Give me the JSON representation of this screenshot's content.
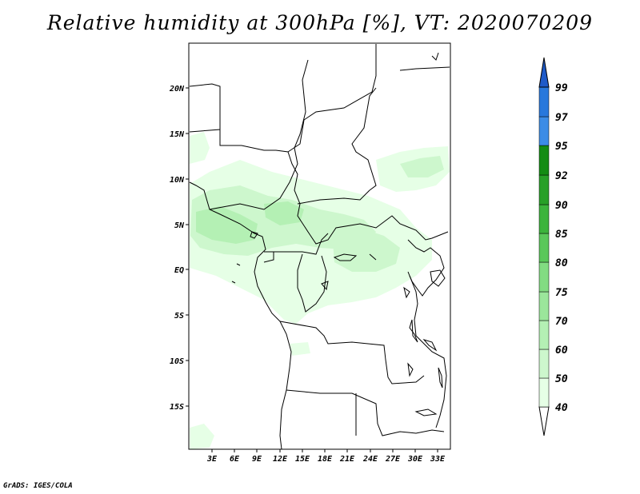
{
  "title": "Relative humidity at 300hPa [%], VT: 2020070209",
  "footer": "GrADS: IGES/COLA",
  "map": {
    "lon_labels": [
      "3E",
      "6E",
      "9E",
      "12E",
      "15E",
      "18E",
      "21E",
      "24E",
      "27E",
      "30E",
      "33E"
    ],
    "lat_labels": [
      "20N",
      "15N",
      "10N",
      "5N",
      "EQ",
      "5S",
      "10S",
      "15S"
    ]
  },
  "colorbar": {
    "levels": [
      "40",
      "50",
      "60",
      "70",
      "75",
      "80",
      "85",
      "90",
      "92",
      "95",
      "97",
      "99"
    ],
    "colors": [
      "#ffffff",
      "#e6ffe6",
      "#cdf7cd",
      "#b4f0b4",
      "#9be69b",
      "#82dc82",
      "#5ac85a",
      "#3cb43c",
      "#28a028",
      "#148c14",
      "#3c8ce6",
      "#2878dc",
      "#1e5ac8"
    ]
  }
}
